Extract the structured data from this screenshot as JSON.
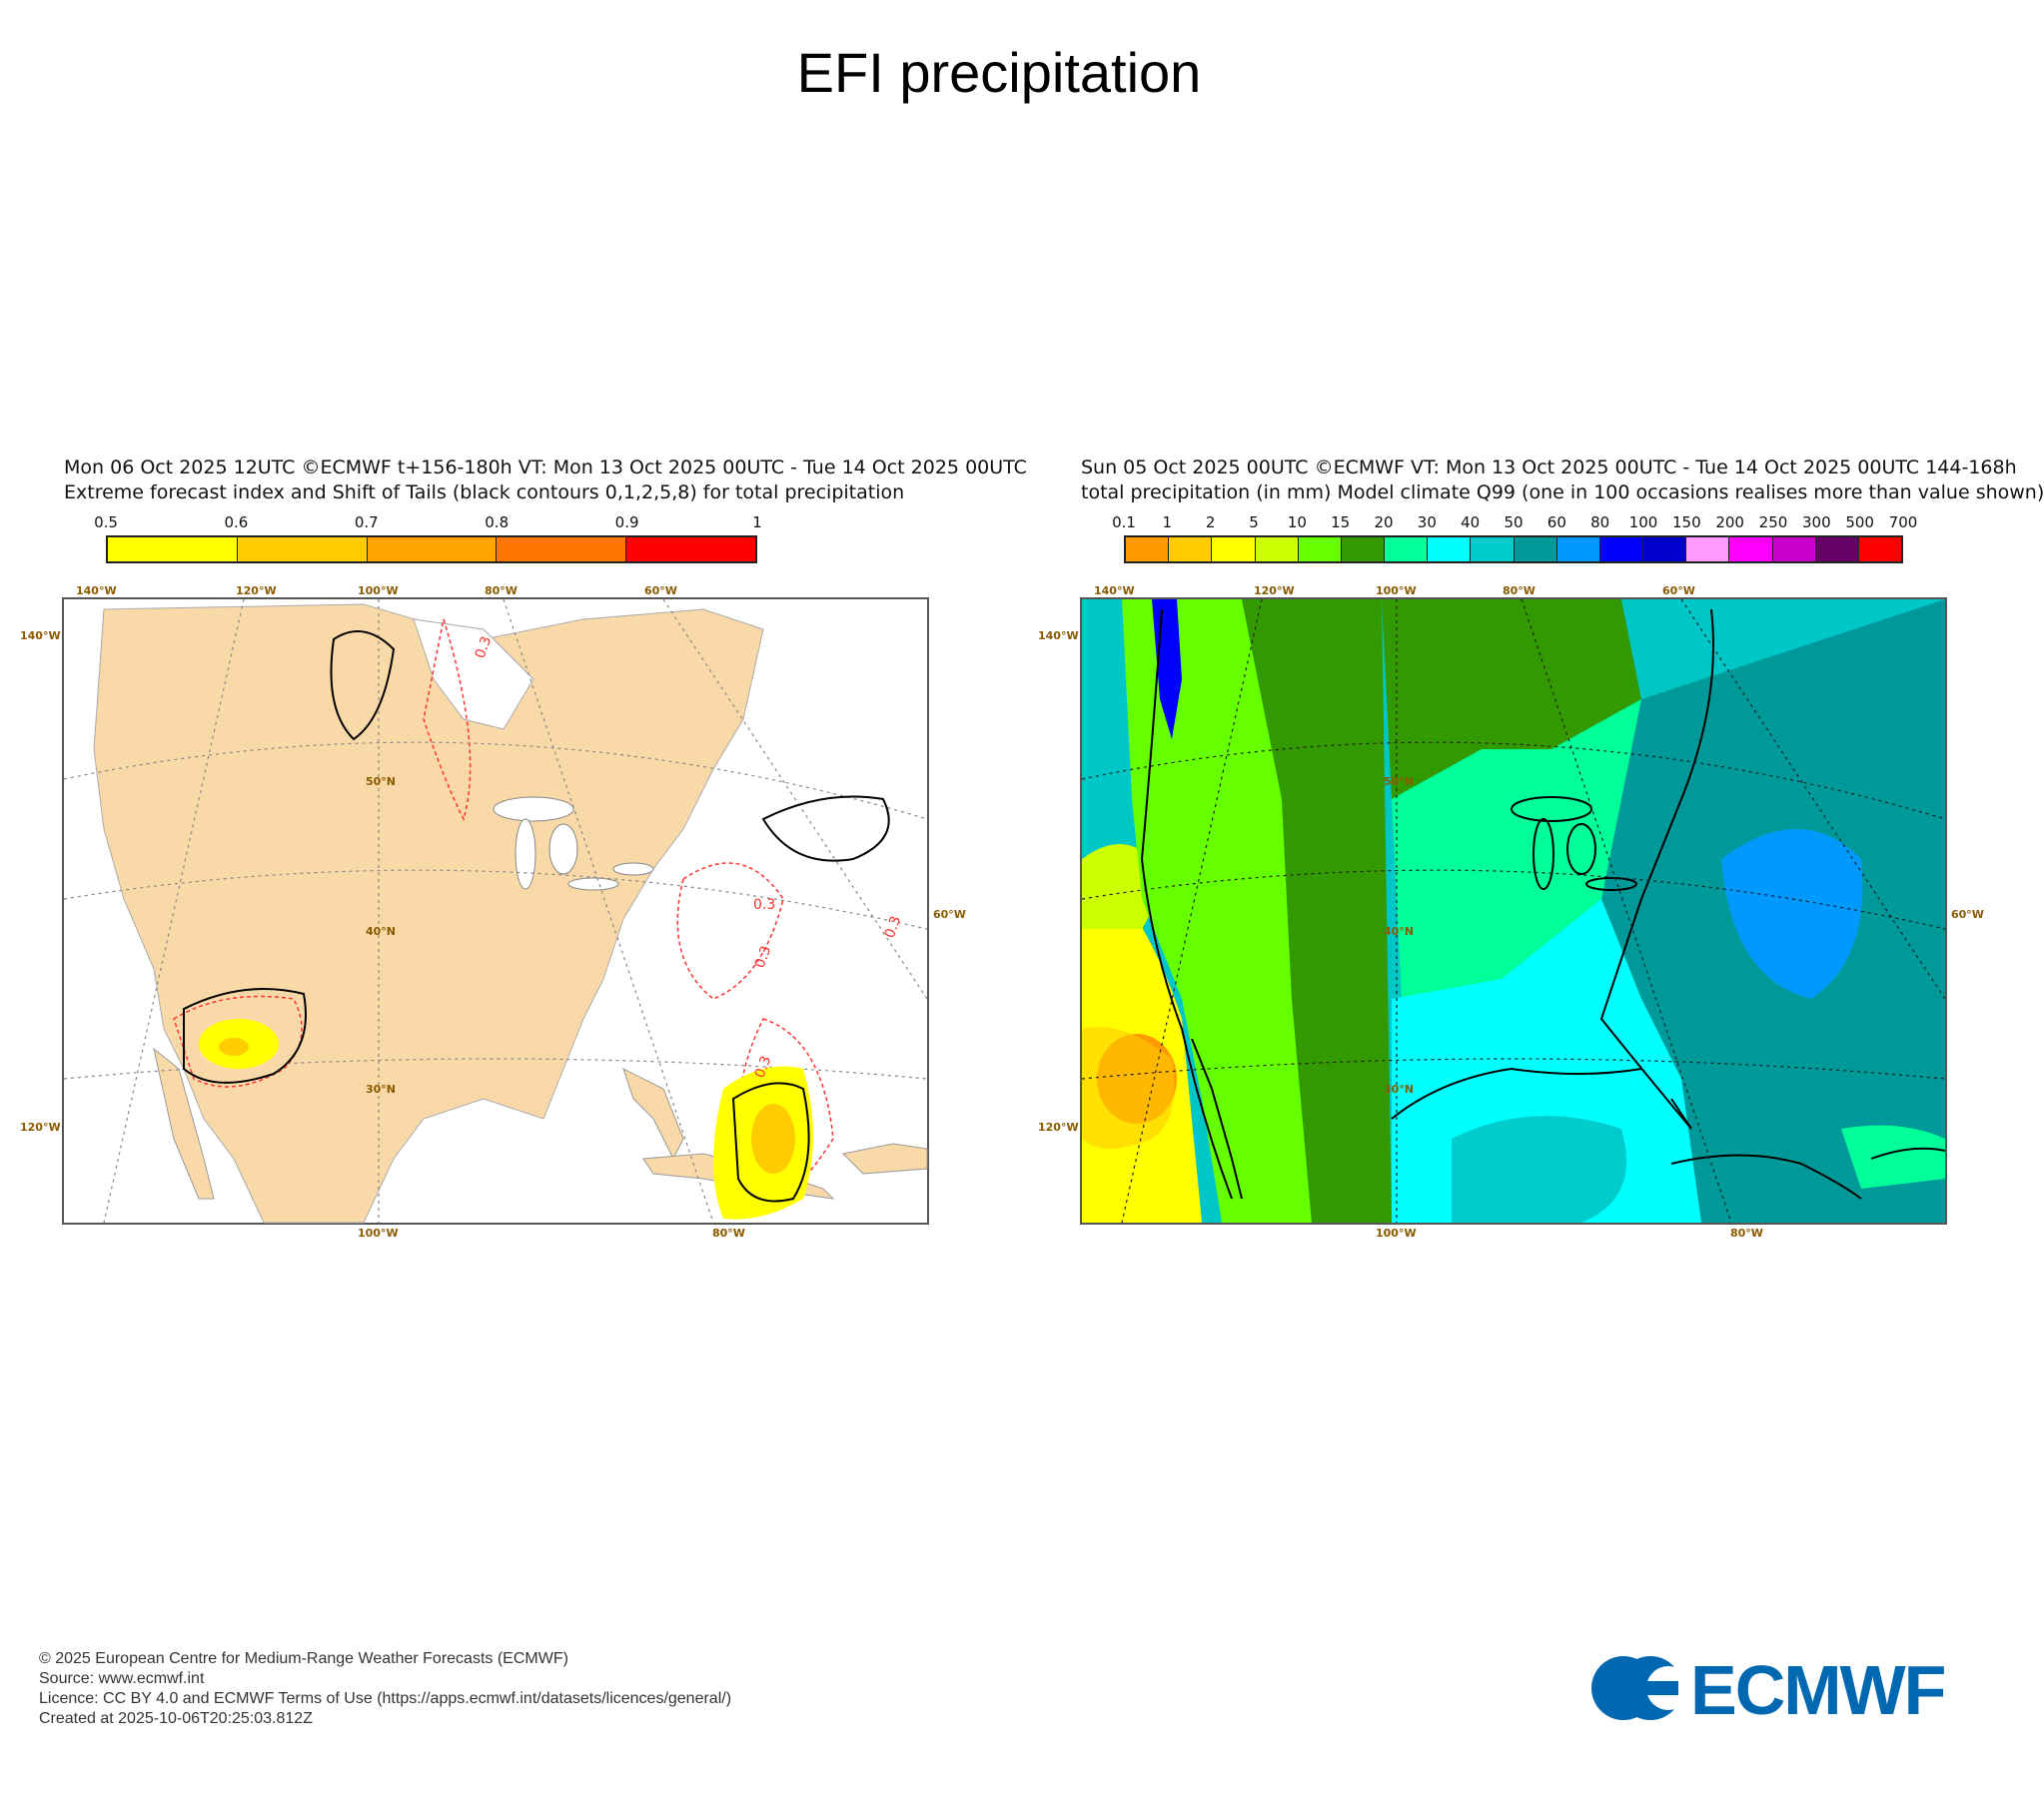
{
  "page": {
    "title": "EFI precipitation"
  },
  "left_panel": {
    "header_line1": "Mon 06 Oct 2025 12UTC ©ECMWF t+156-180h  VT: Mon 13 Oct 2025 00UTC - Tue 14 Oct 2025 00UTC",
    "header_line2": "Extreme forecast index and Shift of Tails (black contours 0,1,2,5,8) for total precipitation",
    "colorbar": {
      "labels": [
        "0.5",
        "0.6",
        "0.7",
        "0.8",
        "0.9",
        "1"
      ],
      "colors": [
        "#ffff00",
        "#ffcc00",
        "#ffa500",
        "#ff7700",
        "#ff0000"
      ]
    },
    "contour_labels": [
      "0.3",
      "0.3",
      "0.3",
      "0.3",
      "0.3"
    ],
    "map_colors": {
      "land": "#fad9a8",
      "ocean": "#ffffff",
      "water": "#ffffff",
      "efi_low": "#ffff00",
      "efi_mid": "#ffcc00",
      "contour_red": "#ff3333",
      "contour_black": "#000000"
    }
  },
  "right_panel": {
    "header_line1": "Sun 05 Oct 2025 00UTC ©ECMWF VT: Mon 13 Oct 2025 00UTC - Tue 14 Oct 2025 00UTC   144-168h",
    "header_line2": "total precipitation (in mm)  Model climate Q99 (one in 100 occasions realises more than value shown)",
    "colorbar": {
      "labels": [
        "0.1",
        "1",
        "2",
        "5",
        "10",
        "15",
        "20",
        "30",
        "40",
        "50",
        "60",
        "80",
        "100",
        "150",
        "200",
        "250",
        "300",
        "500",
        "700"
      ],
      "colors": [
        "#ff9900",
        "#ffcc00",
        "#ffff00",
        "#ccff00",
        "#66ff00",
        "#339900",
        "#00ff99",
        "#00ffff",
        "#00cccc",
        "#009999",
        "#0099ff",
        "#0000ff",
        "#0000cc",
        "#ff99ff",
        "#ff00ff",
        "#cc00cc",
        "#660066",
        "#ff0000"
      ]
    },
    "map_colors": {
      "ocean_teal": "#00c7c7",
      "ocean_dark": "#009999",
      "ocean_blue": "#0099ff",
      "pacific_yellow": "#ffff00",
      "pacific_orange": "#ff9900",
      "west_green": "#66ff00",
      "plains_green": "#339900",
      "central_light": "#00ff99",
      "east_cyan": "#00ffff"
    }
  },
  "graticule_labels": {
    "top": [
      "140°W",
      "120°W",
      "100°W",
      "80°W",
      "60°W"
    ],
    "left": [
      "140°W",
      "120°W"
    ],
    "bottom": [
      "100°W",
      "80°W"
    ],
    "right": [
      "60°W"
    ],
    "interior": [
      "50°N",
      "40°N",
      "30°N"
    ]
  },
  "footer": {
    "line1": "© 2025 European Centre for Medium-Range Weather Forecasts (ECMWF)",
    "line2": "Source: www.ecmwf.int",
    "line3": "Licence: CC BY 4.0 and ECMWF Terms of Use (https://apps.ecmwf.int/datasets/licences/general/)",
    "line4": "Created at 2025-10-06T20:25:03.812Z",
    "logo_text": "ECMWF",
    "logo_color": "#0067b1"
  }
}
